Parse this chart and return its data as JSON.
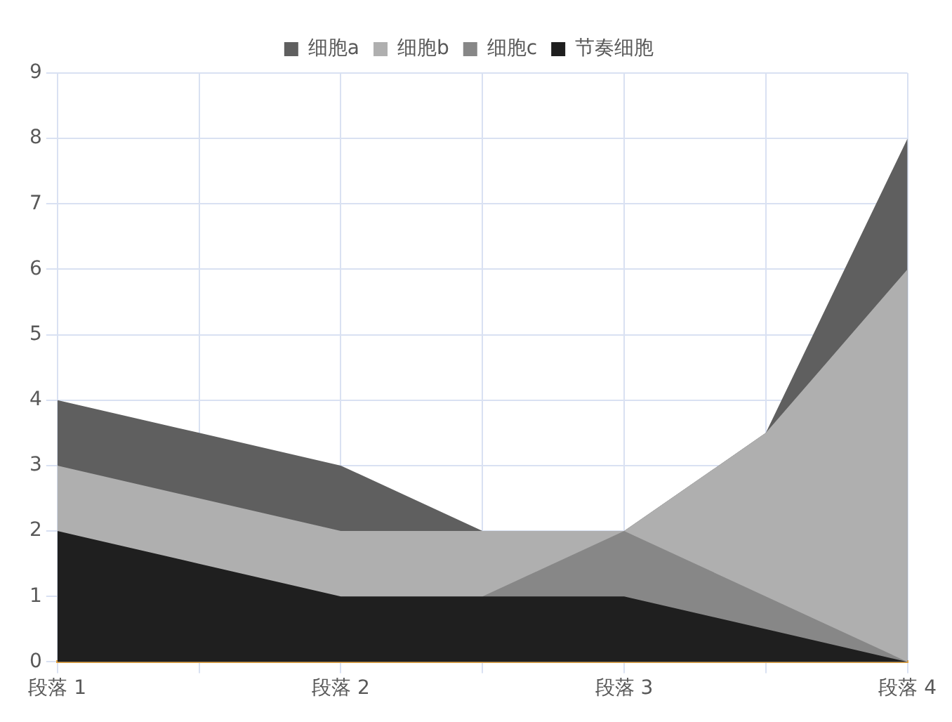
{
  "chart_data": {
    "type": "area",
    "stacked": true,
    "categories": [
      "段落 1",
      null,
      "段落 2",
      null,
      "段落 3",
      null,
      "段落 4"
    ],
    "series": [
      {
        "name": "节奏细胞",
        "color": "#1f1f1f",
        "values": [
          2,
          1.5,
          1,
          1,
          1,
          0.5,
          0
        ]
      },
      {
        "name": "细胞c",
        "color": "#878787",
        "values": [
          null,
          null,
          null,
          0,
          1,
          0.5,
          0
        ]
      },
      {
        "name": "细胞b",
        "color": "#afafaf",
        "values": [
          1,
          1,
          1,
          1,
          0,
          2.5,
          6
        ]
      },
      {
        "name": "细胞a",
        "color": "#5f5f5f",
        "values": [
          1,
          1,
          1,
          0,
          0,
          0,
          2
        ]
      }
    ],
    "ylim": [
      0,
      9
    ],
    "yticks": [
      0,
      1,
      2,
      3,
      4,
      5,
      6,
      7,
      8,
      9
    ],
    "grid": true,
    "legend": "top",
    "marker": "none"
  }
}
